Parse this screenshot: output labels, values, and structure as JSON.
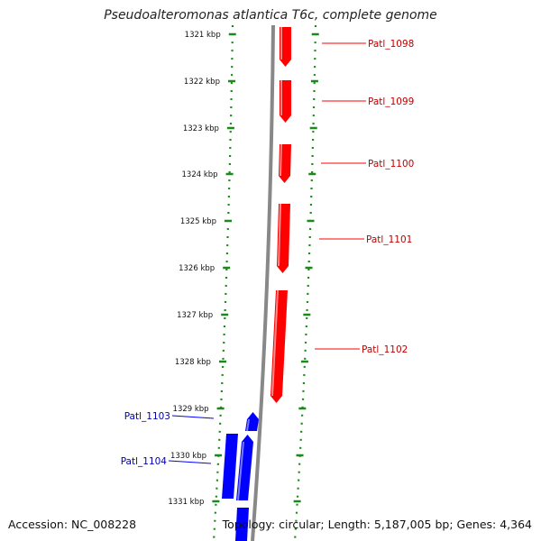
{
  "title": "Pseudoalteromonas atlantica T6c, complete genome",
  "footer": {
    "accession": "Accession: NC_008228",
    "summary": "Topology: circular; Length: 5,187,005 bp; Genes: 4,364"
  },
  "colors": {
    "forward_gene": "#ff0000",
    "reverse_gene": "#0000ff",
    "forward_label": "#c00000",
    "reverse_label": "#0000b0",
    "backbone": "#888888",
    "dotted_ring": "#1a8a1a"
  },
  "ruler": {
    "unit": "kbp",
    "ticks": [
      "1321 kbp",
      "1322 kbp",
      "1323 kbp",
      "1324 kbp",
      "1325 kbp",
      "1326 kbp",
      "1327 kbp",
      "1328 kbp",
      "1329 kbp",
      "1330 kbp",
      "1331 kbp"
    ]
  },
  "genes": [
    {
      "label": "Patl_1098",
      "strand": "forward"
    },
    {
      "label": "Patl_1099",
      "strand": "forward"
    },
    {
      "label": "Patl_1100",
      "strand": "forward"
    },
    {
      "label": "Patl_1101",
      "strand": "forward"
    },
    {
      "label": "Patl_1102",
      "strand": "forward"
    },
    {
      "label": "Patl_1103",
      "strand": "reverse"
    },
    {
      "label": "Patl_1104",
      "strand": "reverse"
    }
  ]
}
